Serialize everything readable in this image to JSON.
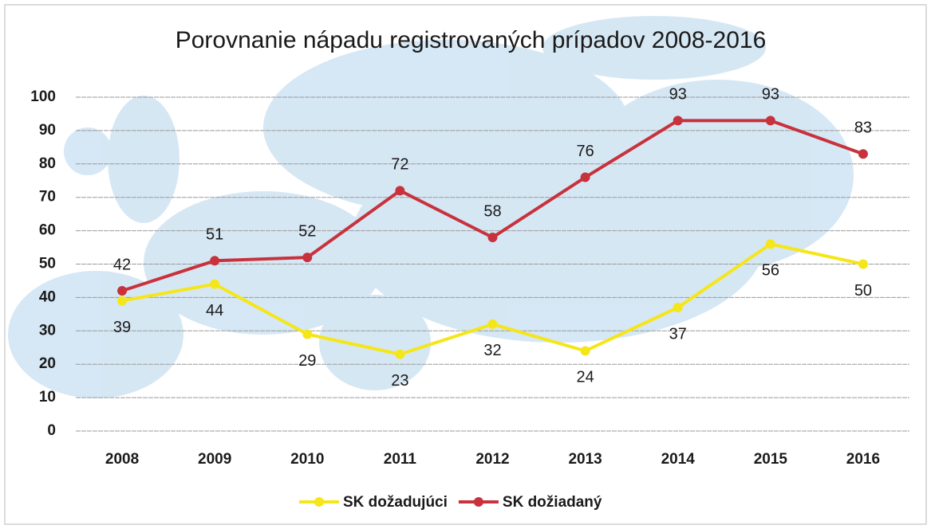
{
  "chart_data": {
    "type": "line",
    "title": "Porovnanie nápadu registrovaných prípadov 2008-2016",
    "categories": [
      "2008",
      "2009",
      "2010",
      "2011",
      "2012",
      "2013",
      "2014",
      "2015",
      "2016"
    ],
    "series": [
      {
        "name": "SK dožadujúci",
        "color": "#f5e61a",
        "values": [
          39,
          44,
          29,
          23,
          32,
          24,
          37,
          56,
          50
        ]
      },
      {
        "name": "SK dožiadaný",
        "color": "#c8323c",
        "values": [
          42,
          51,
          52,
          72,
          58,
          76,
          93,
          93,
          83
        ]
      }
    ],
    "ylim": [
      0,
      100
    ],
    "yticks": [
      0,
      10,
      20,
      30,
      40,
      50,
      60,
      70,
      80,
      90,
      100
    ],
    "grid": true,
    "legend": "bottom"
  }
}
